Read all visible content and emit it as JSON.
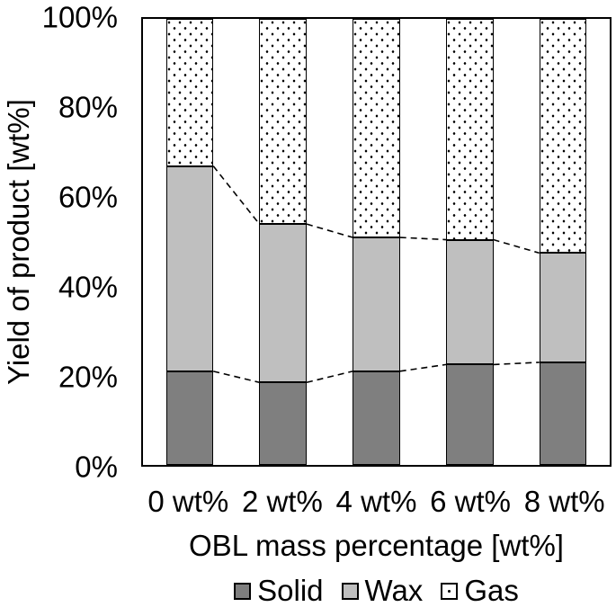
{
  "chart_data": {
    "type": "bar",
    "stacked": true,
    "title": "",
    "categories": [
      "0 wt%",
      "2 wt%",
      "4 wt%",
      "6 wt%",
      "8 wt%"
    ],
    "series": [
      {
        "name": "Solid",
        "values": [
          21,
          18.5,
          21,
          22.5,
          23
        ],
        "color": "#7f7f7f",
        "pattern": "solid"
      },
      {
        "name": "Wax",
        "values": [
          46,
          35.5,
          30,
          28,
          24.5
        ],
        "color": "#bfbfbf",
        "pattern": "solid"
      },
      {
        "name": "Gas",
        "values": [
          33,
          46,
          49,
          49.5,
          52.5
        ],
        "color": "#ffffff",
        "pattern": "dots"
      }
    ],
    "cumulative_boundaries": {
      "solid_top": [
        21,
        18.5,
        21,
        22.5,
        23
      ],
      "wax_top": [
        67,
        54,
        51,
        50.5,
        47.5
      ]
    },
    "xlabel": "OBL mass percentage [wt%]",
    "ylabel": "Yield of product [wt%]",
    "y_ticks": [
      "0%",
      "20%",
      "40%",
      "60%",
      "80%",
      "100%"
    ],
    "ylim": [
      0,
      100
    ],
    "grid": false,
    "legend_position": "bottom",
    "legend_entries": [
      "Solid",
      "Wax",
      "Gas"
    ],
    "connector_lines": "dashed",
    "outline_color": "#000000",
    "background_color": "#ffffff"
  }
}
